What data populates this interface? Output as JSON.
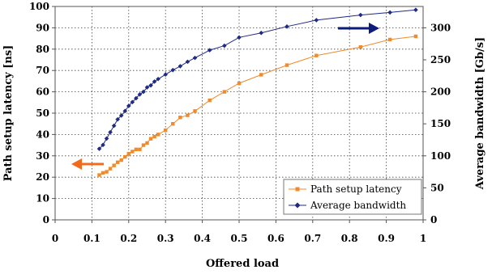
{
  "chart_data": {
    "type": "line",
    "x_axis": {
      "label": "Offered load",
      "range": [
        0,
        1
      ],
      "ticks": [
        "0",
        "0.1",
        "0.2",
        "0.3",
        "0.4",
        "0.5",
        "0.6",
        "0.7",
        "0.8",
        "0.9",
        "1"
      ]
    },
    "y_axis_left": {
      "label": "Path setup latency [ns]",
      "range": [
        0,
        100
      ],
      "ticks": [
        "0",
        "10",
        "20",
        "30",
        "40",
        "50",
        "60",
        "70",
        "80",
        "90",
        "100"
      ]
    },
    "y_axis_right": {
      "label": "Average bandwidth [Gb/s]",
      "range": [
        0,
        333.33
      ],
      "ticks": [
        "0",
        "50",
        "100",
        "150",
        "200",
        "250",
        "300"
      ]
    },
    "grid": "dotted vertical and horizontal",
    "legend": {
      "position": "bottom-right",
      "entries": [
        "Path setup latency",
        "Average bandwidth"
      ]
    },
    "colors": {
      "latency": "#f08a2a",
      "bandwidth": "#1f2a84",
      "arrow_left": "#f26b1d",
      "arrow_right": "#0d1b7a"
    },
    "series": [
      {
        "name": "Path setup latency",
        "axis": "left",
        "color": "#f08a2a",
        "x": [
          0.12,
          0.13,
          0.14,
          0.15,
          0.16,
          0.17,
          0.18,
          0.19,
          0.2,
          0.21,
          0.22,
          0.23,
          0.24,
          0.25,
          0.26,
          0.27,
          0.28,
          0.3,
          0.32,
          0.34,
          0.36,
          0.38,
          0.42,
          0.46,
          0.5,
          0.56,
          0.63,
          0.71,
          0.83,
          0.91,
          0.98
        ],
        "y": [
          21,
          22,
          22.5,
          24,
          25.5,
          27,
          28,
          29.5,
          31,
          32,
          33,
          33,
          35,
          36,
          38,
          39,
          40,
          42,
          45,
          48,
          49,
          51,
          56,
          60,
          64,
          68,
          72.5,
          77,
          81,
          84.5,
          86
        ]
      },
      {
        "name": "Average bandwidth",
        "axis": "right",
        "color": "#1f2a84",
        "x": [
          0.12,
          0.13,
          0.14,
          0.15,
          0.16,
          0.17,
          0.18,
          0.19,
          0.2,
          0.21,
          0.22,
          0.23,
          0.24,
          0.25,
          0.26,
          0.27,
          0.28,
          0.3,
          0.32,
          0.34,
          0.36,
          0.38,
          0.42,
          0.46,
          0.5,
          0.56,
          0.63,
          0.71,
          0.83,
          0.91,
          0.98
        ],
        "y": [
          111,
          117,
          127,
          137,
          147,
          157,
          163,
          170,
          178,
          184,
          190,
          196,
          200,
          207,
          210,
          216,
          220,
          227,
          234,
          240,
          247,
          253,
          265,
          272,
          285,
          292,
          302,
          312,
          320,
          324,
          328
        ]
      }
    ]
  }
}
